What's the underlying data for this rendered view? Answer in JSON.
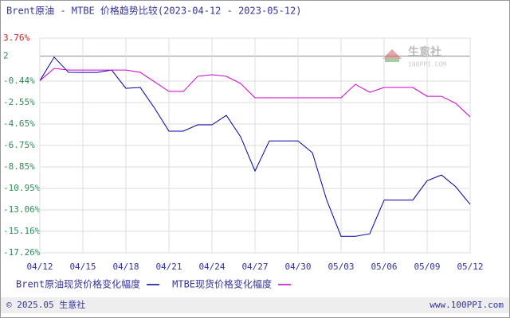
{
  "chart_data": {
    "type": "line",
    "title": "Brent原油 - MTBE 价格趋势比较(2023-04-12 - 2023-05-12)",
    "categories": [
      "04/12",
      null,
      null,
      "04/15",
      null,
      null,
      "04/18",
      null,
      null,
      "04/21",
      null,
      null,
      "04/24",
      null,
      null,
      "04/27",
      null,
      null,
      "04/30",
      null,
      null,
      "05/03",
      null,
      null,
      "05/06",
      null,
      null,
      "05/09",
      null,
      null,
      "05/12"
    ],
    "series": [
      {
        "name": "Brent原油现货价格变化幅度",
        "color": "#0000aa",
        "values": [
          -0.4,
          1.9,
          0.41,
          0.4,
          0.4,
          0.64,
          -1.15,
          -1.07,
          -3.1,
          -5.35,
          -5.35,
          -4.73,
          -4.73,
          -3.8,
          -5.9,
          -9.25,
          -6.3,
          -6.3,
          -6.3,
          -7.46,
          -12.1,
          -15.64,
          -15.64,
          -15.4,
          -12.1,
          -12.1,
          -12.1,
          -10.2,
          -9.64,
          -10.8,
          -12.52
        ]
      },
      {
        "name": "MTBE现货价格变化幅度",
        "color": "#cc00cc",
        "values": [
          -0.4,
          0.8,
          0.64,
          0.64,
          0.64,
          0.64,
          0.64,
          0.41,
          -0.52,
          -1.46,
          -1.46,
          0.02,
          0.18,
          0.02,
          -0.68,
          -2.08,
          -2.08,
          -2.08,
          -2.08,
          -2.08,
          -2.08,
          -2.08,
          -0.76,
          -1.54,
          -1.07,
          -1.07,
          -1.07,
          -1.93,
          -1.93,
          -2.63,
          -3.95
        ]
      }
    ],
    "ylim": [
      -17.26,
      3.76
    ],
    "yticks": [
      {
        "value": 3.76,
        "label": "3.76%"
      },
      2,
      {
        "value": -0.44,
        "label": "-0.44%"
      },
      {
        "value": -2.55,
        "label": "-2.55%"
      },
      {
        "value": -4.65,
        "label": "-4.65%"
      },
      {
        "value": -6.75,
        "label": "-6.75%"
      },
      {
        "value": -8.85,
        "label": "-8.85%"
      },
      {
        "value": -10.95,
        "label": "-10.95%"
      },
      {
        "value": -13.06,
        "label": "-13.06%"
      },
      {
        "value": -15.16,
        "label": "-15.16%"
      },
      {
        "value": -17.26,
        "label": "-17.26%"
      }
    ],
    "grid": true
  },
  "watermark": {
    "name": "生意社",
    "site": "100PPI.COM"
  },
  "footer": {
    "left": "© 2025.05 生意社",
    "right": "www.100PPI.com"
  }
}
